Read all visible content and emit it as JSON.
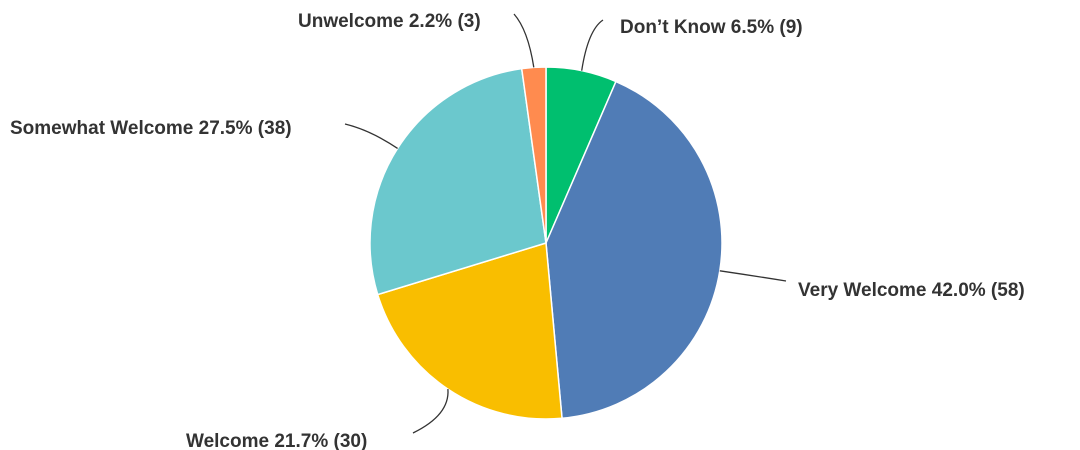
{
  "chart_data": {
    "type": "pie",
    "start_angle_deg": 0,
    "direction": "clockwise",
    "slices": [
      {
        "name": "Don’t Know",
        "percent": 6.5,
        "count": 9,
        "label": "Don’t Know 6.5% (9)",
        "color": "#00BF6F"
      },
      {
        "name": "Very Welcome",
        "percent": 42.0,
        "count": 58,
        "label": "Very Welcome 42.0% (58)",
        "color": "#507CB6"
      },
      {
        "name": "Welcome",
        "percent": 21.7,
        "count": 30,
        "label": "Welcome 21.7% (30)",
        "color": "#F9BE00"
      },
      {
        "name": "Somewhat Welcome",
        "percent": 27.5,
        "count": 38,
        "label": "Somewhat Welcome 27.5% (38)",
        "color": "#6BC8CD"
      },
      {
        "name": "Unwelcome",
        "percent": 2.2,
        "count": 3,
        "label": "Unwelcome 2.2% (3)",
        "color": "#FF8B4F"
      }
    ]
  }
}
